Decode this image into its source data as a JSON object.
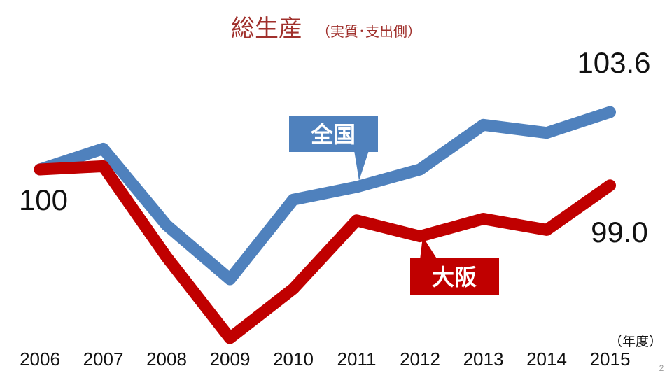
{
  "chart_data": {
    "type": "line",
    "title": "総生産",
    "subtitle": "（実質･支出側）",
    "x_unit_label": "（年度）",
    "categories": [
      "2006",
      "2007",
      "2008",
      "2009",
      "2010",
      "2011",
      "2012",
      "2013",
      "2014",
      "2015"
    ],
    "ylim": [
      88,
      108
    ],
    "series": [
      {
        "name": "全国",
        "color": "#4f81bd",
        "values": [
          100,
          101.3,
          96.5,
          93.1,
          98.1,
          98.9,
          100.0,
          102.8,
          102.3,
          103.6
        ]
      },
      {
        "name": "大阪",
        "color": "#c00000",
        "values": [
          100,
          100.2,
          94.5,
          89.4,
          92.5,
          96.8,
          95.8,
          96.9,
          96.2,
          99.0
        ]
      }
    ],
    "annotations": {
      "start_label": "100",
      "end_label_national": "103.6",
      "end_label_osaka": "99.0"
    }
  },
  "page_number": "2"
}
